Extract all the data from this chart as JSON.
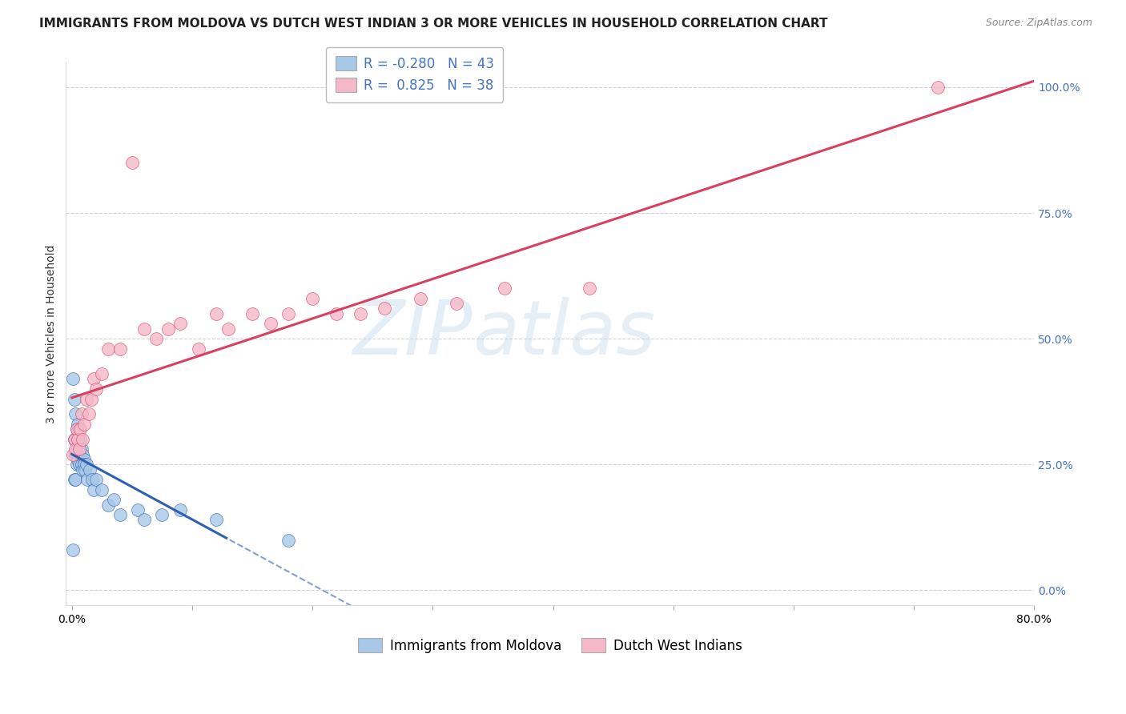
{
  "title": "IMMIGRANTS FROM MOLDOVA VS DUTCH WEST INDIAN 3 OR MORE VEHICLES IN HOUSEHOLD CORRELATION CHART",
  "source": "Source: ZipAtlas.com",
  "ylabel": "3 or more Vehicles in Household",
  "series1_label": "Immigrants from Moldova",
  "series2_label": "Dutch West Indians",
  "series1_color": "#a8c8e8",
  "series2_color": "#f5b8c8",
  "series1_line_color": "#3060b0",
  "series2_line_color": "#d84060",
  "R1": -0.28,
  "N1": 43,
  "R2": 0.825,
  "N2": 38,
  "xlim": [
    -0.005,
    0.8
  ],
  "ylim": [
    -0.03,
    1.05
  ],
  "xticks": [
    0.0,
    0.1,
    0.2,
    0.3,
    0.4,
    0.5,
    0.6,
    0.7,
    0.8
  ],
  "yticks_right": [
    0.0,
    0.25,
    0.5,
    0.75,
    1.0
  ],
  "ytick_labels_right": [
    "0.0%",
    "25.0%",
    "50.0%",
    "75.0%",
    "100.0%"
  ],
  "watermark_zip": "ZIP",
  "watermark_atlas": "atlas",
  "background_color": "#ffffff",
  "grid_color": "#cccccc",
  "series1_x": [
    0.001,
    0.001,
    0.002,
    0.002,
    0.002,
    0.003,
    0.003,
    0.003,
    0.003,
    0.004,
    0.004,
    0.004,
    0.005,
    0.005,
    0.005,
    0.006,
    0.006,
    0.006,
    0.007,
    0.007,
    0.008,
    0.008,
    0.009,
    0.009,
    0.01,
    0.01,
    0.011,
    0.012,
    0.013,
    0.015,
    0.017,
    0.018,
    0.02,
    0.025,
    0.03,
    0.035,
    0.04,
    0.055,
    0.06,
    0.075,
    0.09,
    0.12,
    0.18
  ],
  "series1_y": [
    0.42,
    0.08,
    0.38,
    0.3,
    0.22,
    0.35,
    0.3,
    0.27,
    0.22,
    0.32,
    0.28,
    0.25,
    0.33,
    0.3,
    0.26,
    0.32,
    0.28,
    0.25,
    0.3,
    0.27,
    0.28,
    0.25,
    0.27,
    0.24,
    0.26,
    0.25,
    0.24,
    0.25,
    0.22,
    0.24,
    0.22,
    0.2,
    0.22,
    0.2,
    0.17,
    0.18,
    0.15,
    0.16,
    0.14,
    0.15,
    0.16,
    0.14,
    0.1
  ],
  "series2_x": [
    0.001,
    0.002,
    0.003,
    0.004,
    0.005,
    0.006,
    0.007,
    0.008,
    0.009,
    0.01,
    0.012,
    0.014,
    0.016,
    0.018,
    0.02,
    0.025,
    0.03,
    0.04,
    0.05,
    0.06,
    0.07,
    0.08,
    0.09,
    0.105,
    0.12,
    0.13,
    0.15,
    0.165,
    0.18,
    0.2,
    0.22,
    0.24,
    0.26,
    0.29,
    0.32,
    0.36,
    0.43,
    0.72
  ],
  "series2_y": [
    0.27,
    0.3,
    0.28,
    0.32,
    0.3,
    0.28,
    0.32,
    0.35,
    0.3,
    0.33,
    0.38,
    0.35,
    0.38,
    0.42,
    0.4,
    0.43,
    0.48,
    0.48,
    0.85,
    0.52,
    0.5,
    0.52,
    0.53,
    0.48,
    0.55,
    0.52,
    0.55,
    0.53,
    0.55,
    0.58,
    0.55,
    0.55,
    0.56,
    0.58,
    0.57,
    0.6,
    0.6,
    1.0
  ],
  "title_fontsize": 11,
  "axis_fontsize": 10,
  "tick_fontsize": 10,
  "legend_fontsize": 12
}
